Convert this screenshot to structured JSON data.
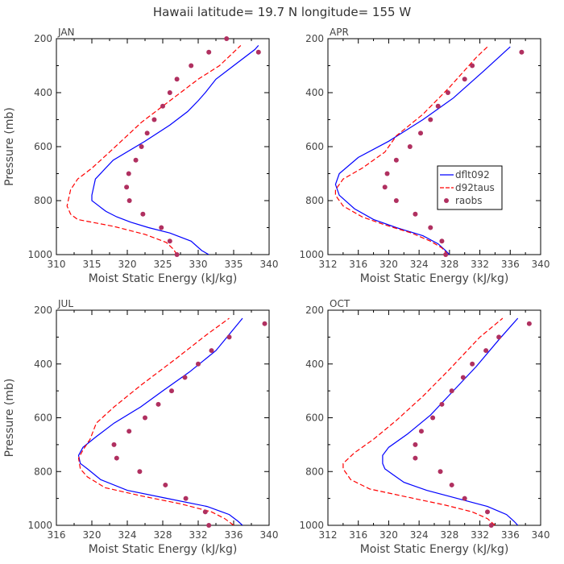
{
  "title": "Hawaii  latitude= 19.7 N longitude= 155 W",
  "chart_data": [
    {
      "type": "line",
      "panel": "JAN",
      "xlabel": "Moist Static Energy (kJ/kg)",
      "ylabel": "Pressure (mb)",
      "xlim": [
        310,
        340
      ],
      "xticks": [
        310,
        315,
        320,
        325,
        330,
        335,
        340
      ],
      "ylim": [
        1000,
        200
      ],
      "yticks": [
        200,
        400,
        600,
        800,
        1000
      ],
      "series": [
        {
          "name": "dflt092",
          "style": "solid",
          "color": "#0000ff",
          "x": [
            331.5,
            330.5,
            329,
            326,
            323,
            320.5,
            318.5,
            317,
            316.5,
            316,
            315.5,
            315,
            315,
            315.5,
            318,
            322.5,
            326,
            328.5,
            330,
            331,
            332.5,
            335,
            338,
            338.5
          ],
          "y": [
            1000,
            985,
            950,
            920,
            900,
            880,
            860,
            840,
            830,
            820,
            810,
            800,
            780,
            720,
            650,
            580,
            520,
            470,
            430,
            400,
            350,
            300,
            240,
            225
          ]
        },
        {
          "name": "d92taus",
          "style": "dashed",
          "color": "#ff0000",
          "x": [
            327,
            326.5,
            325.5,
            322.5,
            318,
            315,
            313,
            312,
            311.5,
            312,
            313,
            315,
            317.5,
            322,
            326.5,
            330,
            333,
            335,
            336
          ],
          "y": [
            1000,
            980,
            955,
            925,
            895,
            880,
            870,
            850,
            820,
            760,
            720,
            680,
            620,
            510,
            420,
            350,
            300,
            250,
            225
          ]
        },
        {
          "name": "raobs",
          "style": "points",
          "color": "#b03060",
          "x": [
            327,
            326,
            324.8,
            322.2,
            320.3,
            319.9,
            320.2,
            321.2,
            322,
            322.8,
            323.8,
            325,
            326,
            327,
            329,
            331.5,
            334,
            338.5
          ],
          "y": [
            1000,
            950,
            900,
            850,
            800,
            750,
            700,
            650,
            600,
            550,
            500,
            450,
            400,
            350,
            300,
            250,
            200,
            250
          ]
        }
      ]
    },
    {
      "type": "line",
      "panel": "APR",
      "xlabel": "Moist Static Energy (kJ/kg)",
      "ylabel": "",
      "xlim": [
        312,
        340
      ],
      "xticks": [
        312,
        316,
        320,
        324,
        328,
        332,
        336,
        340
      ],
      "ylim": [
        1000,
        200
      ],
      "yticks": [
        200,
        400,
        600,
        800,
        1000
      ],
      "legend": {
        "position": "right",
        "entries": [
          "dflt092",
          "d92taus",
          "raobs"
        ]
      },
      "series": [
        {
          "name": "dflt092",
          "style": "solid",
          "color": "#0000ff",
          "x": [
            328,
            327.5,
            326.5,
            324.5,
            321,
            318,
            315.5,
            313.5,
            313,
            313.5,
            316,
            320,
            324.5,
            328.5,
            332.5,
            336
          ],
          "y": [
            1000,
            985,
            960,
            930,
            900,
            870,
            830,
            780,
            740,
            700,
            640,
            580,
            500,
            420,
            320,
            230
          ]
        },
        {
          "name": "d92taus",
          "style": "dashed",
          "color": "#ff0000",
          "x": [
            327.8,
            327,
            325.5,
            323,
            319.5,
            316.5,
            314,
            313,
            313,
            314,
            316.5,
            319.5,
            321,
            324.5,
            328,
            331.5,
            333
          ],
          "y": [
            1000,
            975,
            950,
            920,
            890,
            860,
            820,
            780,
            760,
            720,
            680,
            620,
            560,
            480,
            380,
            270,
            230
          ]
        },
        {
          "name": "raobs",
          "style": "points",
          "color": "#b03060",
          "x": [
            327.5,
            327,
            325.5,
            323.5,
            321,
            319.5,
            319.8,
            321,
            322.8,
            324.2,
            325.5,
            326.5,
            327.8,
            330,
            331,
            337.5
          ],
          "y": [
            1000,
            950,
            900,
            850,
            800,
            750,
            700,
            650,
            600,
            550,
            500,
            450,
            400,
            350,
            300,
            250
          ]
        }
      ]
    },
    {
      "type": "line",
      "panel": "JUL",
      "xlabel": "Moist Static Energy (kJ/kg)",
      "ylabel": "Pressure (mb)",
      "xlim": [
        316,
        340
      ],
      "xticks": [
        316,
        320,
        324,
        328,
        332,
        336,
        340
      ],
      "ylim": [
        1000,
        200
      ],
      "yticks": [
        200,
        400,
        600,
        800,
        1000
      ],
      "series": [
        {
          "name": "dflt092",
          "style": "solid",
          "color": "#0000ff",
          "x": [
            337,
            336.5,
            335.5,
            333,
            328.5,
            324,
            321,
            319.5,
            318.7,
            318.5,
            319,
            320.5,
            322.5,
            325.5,
            328,
            331,
            334,
            336,
            337
          ],
          "y": [
            1000,
            985,
            960,
            930,
            900,
            870,
            830,
            790,
            770,
            740,
            710,
            670,
            620,
            560,
            500,
            430,
            350,
            270,
            230
          ]
        },
        {
          "name": "d92taus",
          "style": "dashed",
          "color": "#ff0000",
          "x": [
            336,
            335,
            333.5,
            330,
            325.5,
            321.5,
            319.5,
            318.7,
            318.5,
            319,
            319.8,
            320.5,
            322.5,
            325.5,
            329.5,
            333,
            335.5
          ],
          "y": [
            1000,
            975,
            950,
            920,
            890,
            860,
            820,
            790,
            750,
            720,
            680,
            620,
            560,
            480,
            380,
            290,
            230
          ]
        },
        {
          "name": "raobs",
          "style": "points",
          "color": "#b03060",
          "x": [
            333.2,
            332.8,
            330.6,
            328.3,
            325.4,
            322.8,
            322.5,
            324.2,
            326,
            327.5,
            329,
            330.5,
            332,
            333.5,
            335.5,
            339.5
          ],
          "y": [
            1000,
            950,
            900,
            850,
            800,
            750,
            700,
            650,
            600,
            550,
            500,
            450,
            400,
            350,
            300,
            250
          ]
        }
      ]
    },
    {
      "type": "line",
      "panel": "OCT",
      "xlabel": "Moist Static Energy (kJ/kg)",
      "ylabel": "",
      "xlim": [
        312,
        340
      ],
      "xticks": [
        312,
        316,
        320,
        324,
        328,
        332,
        336,
        340
      ],
      "ylim": [
        1000,
        200
      ],
      "yticks": [
        200,
        400,
        600,
        800,
        1000
      ],
      "series": [
        {
          "name": "dflt092",
          "style": "solid",
          "color": "#0000ff",
          "x": [
            337,
            336.5,
            335.5,
            333,
            329,
            325,
            322,
            320.5,
            319.5,
            319.2,
            319.2,
            320,
            322.5,
            325.5,
            328.5,
            331.5,
            334.5,
            337
          ],
          "y": [
            1000,
            985,
            960,
            930,
            900,
            870,
            840,
            810,
            790,
            770,
            740,
            710,
            660,
            590,
            500,
            410,
            310,
            230
          ]
        },
        {
          "name": "d92taus",
          "style": "dashed",
          "color": "#ff0000",
          "x": [
            334,
            333,
            331,
            327.5,
            322.5,
            317.5,
            315,
            314,
            314,
            315.5,
            318,
            321,
            324.5,
            328,
            332,
            335
          ],
          "y": [
            1000,
            975,
            950,
            925,
            895,
            865,
            830,
            790,
            770,
            730,
            680,
            610,
            520,
            420,
            300,
            230
          ]
        },
        {
          "name": "raobs",
          "style": "points",
          "color": "#b03060",
          "x": [
            333.5,
            333,
            330,
            328.3,
            326.8,
            323.5,
            323.5,
            324.3,
            325.8,
            327,
            328.3,
            329.8,
            331,
            332.8,
            334.5,
            338.5
          ],
          "y": [
            1000,
            950,
            900,
            850,
            800,
            750,
            700,
            650,
            600,
            550,
            500,
            450,
            400,
            350,
            300,
            250
          ]
        }
      ]
    }
  ]
}
